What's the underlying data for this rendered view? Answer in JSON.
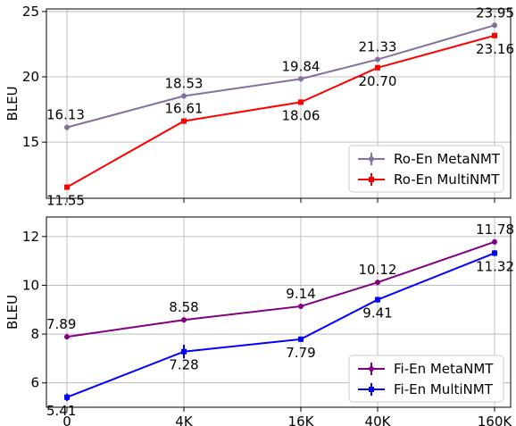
{
  "chart_data": [
    {
      "type": "line",
      "categories": [
        "0",
        "4K",
        "16K",
        "40K",
        "160K"
      ],
      "xlabel": "",
      "ylabel": "BLEU",
      "ylim": [
        10.7,
        25.2
      ],
      "yticks": [
        15,
        20,
        25
      ],
      "grid": true,
      "legend_position": "bottom-right",
      "series": [
        {
          "name": "Ro-En MetaNMT",
          "color": "#8470a0",
          "marker": "circle",
          "values": [
            16.13,
            18.53,
            19.84,
            21.33,
            23.95
          ],
          "labels": [
            "16.13",
            "18.53",
            "19.84",
            "21.33",
            "23.95"
          ]
        },
        {
          "name": "Ro-En MultiNMT",
          "color": "#ff0000",
          "marker": "square",
          "values": [
            11.55,
            16.61,
            18.06,
            20.7,
            23.16
          ],
          "labels": [
            "11.55",
            "16.61",
            "18.06",
            "20.70",
            "23.16"
          ]
        }
      ]
    },
    {
      "type": "line",
      "categories": [
        "0",
        "4K",
        "16K",
        "40K",
        "160K"
      ],
      "xlabel": "",
      "ylabel": "BLEU",
      "ylim": [
        5.0,
        12.8
      ],
      "yticks": [
        6,
        8,
        10,
        12
      ],
      "grid": true,
      "legend_position": "bottom-right",
      "series": [
        {
          "name": "Fi-En MetaNMT",
          "color": "#800080",
          "marker": "circle",
          "values": [
            7.89,
            8.58,
            9.14,
            10.12,
            11.78
          ],
          "labels": [
            "7.89",
            "8.58",
            "9.14",
            "10.12",
            "11.78"
          ]
        },
        {
          "name": "Fi-En MultiNMT",
          "color": "#0000ff",
          "marker": "square",
          "values": [
            5.41,
            7.28,
            7.79,
            9.41,
            11.32
          ],
          "labels": [
            "5.41",
            "7.28",
            "7.79",
            "9.41",
            "11.32"
          ],
          "error_bars": [
            0.15,
            0.28,
            0.1,
            0.12,
            0.12
          ]
        }
      ]
    }
  ]
}
